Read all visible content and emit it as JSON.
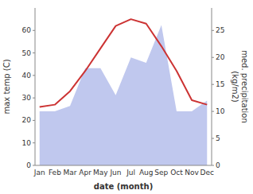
{
  "chart_data": {
    "type": "line",
    "categories": [
      "Jan",
      "Feb",
      "Mar",
      "Apr",
      "May",
      "Jun",
      "Jul",
      "Aug",
      "Sep",
      "Oct",
      "Nov",
      "Dec"
    ],
    "xlabel": "date (month)",
    "ylabel": "max temp (C)",
    "y2label": "med. precipitation\n(kg/m2)",
    "series": [
      {
        "type": "area",
        "axis": "y2",
        "color": "#c0c8ee",
        "values": [
          10,
          10,
          11,
          18,
          18,
          13,
          20,
          19,
          26,
          10,
          10,
          12
        ]
      },
      {
        "type": "line",
        "color": "#cc3333",
        "values": [
          26,
          27,
          33,
          42,
          52,
          62,
          65,
          63,
          53,
          42,
          29,
          27
        ]
      }
    ],
    "ylim": [
      0,
      70
    ],
    "yticks": [
      0,
      10,
      20,
      30,
      40,
      50,
      60
    ],
    "y2lim": [
      0,
      29.17
    ],
    "y2ticks": [
      0,
      5,
      10,
      15,
      20,
      25
    ],
    "grid": false
  }
}
